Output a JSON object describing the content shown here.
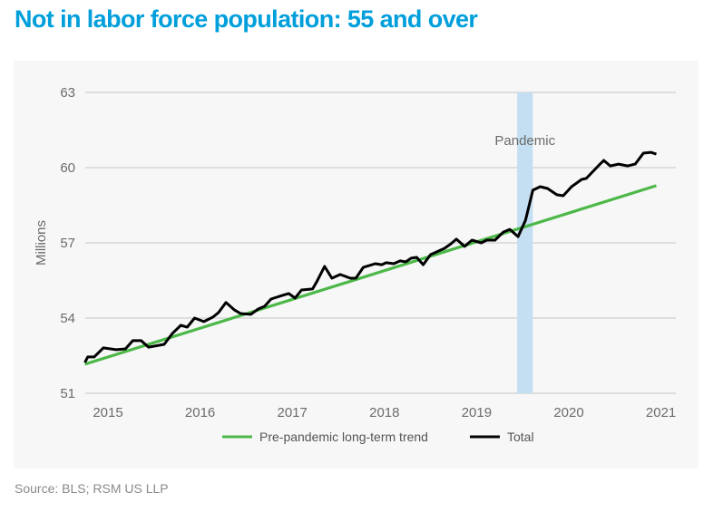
{
  "title": "Not in labor force population: 55 and over",
  "source": "Source: BLS; RSM US LLP",
  "chart_data": {
    "type": "line",
    "title": "Not in labor force population: 55 and over",
    "xlabel": "",
    "ylabel": "Millions",
    "ylim": [
      51,
      63
    ],
    "xlim": [
      2014.76,
      2021.0
    ],
    "yticks": [
      51,
      54,
      57,
      60,
      63
    ],
    "xticks": [
      2015,
      2016,
      2017,
      2018,
      2019,
      2020,
      2021
    ],
    "grid": true,
    "legend_position": "bottom-center",
    "annotation": {
      "label": "Pandemic",
      "x_start": 2019.45,
      "x_end": 2019.62,
      "color": "#c5dff2"
    },
    "series": [
      {
        "name": "Pre-pandemic long-term trend",
        "color": "#4cb848",
        "points": [
          [
            2014.76,
            52.16
          ],
          [
            2020.96,
            59.28
          ]
        ]
      },
      {
        "name": "Total",
        "color": "#000000",
        "points": [
          [
            2014.76,
            52.23
          ],
          [
            2014.79,
            52.45
          ],
          [
            2014.86,
            52.45
          ],
          [
            2014.96,
            52.81
          ],
          [
            2015.1,
            52.74
          ],
          [
            2015.2,
            52.77
          ],
          [
            2015.28,
            53.1
          ],
          [
            2015.37,
            53.1
          ],
          [
            2015.45,
            52.84
          ],
          [
            2015.62,
            52.95
          ],
          [
            2015.71,
            53.39
          ],
          [
            2015.8,
            53.71
          ],
          [
            2015.87,
            53.64
          ],
          [
            2015.95,
            54.0
          ],
          [
            2016.05,
            53.86
          ],
          [
            2016.15,
            54.04
          ],
          [
            2016.21,
            54.22
          ],
          [
            2016.29,
            54.62
          ],
          [
            2016.38,
            54.33
          ],
          [
            2016.45,
            54.18
          ],
          [
            2016.56,
            54.15
          ],
          [
            2016.64,
            54.36
          ],
          [
            2016.71,
            54.47
          ],
          [
            2016.78,
            54.76
          ],
          [
            2016.9,
            54.9
          ],
          [
            2016.97,
            54.98
          ],
          [
            2017.04,
            54.8
          ],
          [
            2017.11,
            55.12
          ],
          [
            2017.23,
            55.16
          ],
          [
            2017.28,
            55.48
          ],
          [
            2017.36,
            56.06
          ],
          [
            2017.44,
            55.59
          ],
          [
            2017.53,
            55.74
          ],
          [
            2017.64,
            55.59
          ],
          [
            2017.7,
            55.59
          ],
          [
            2017.78,
            56.02
          ],
          [
            2017.91,
            56.17
          ],
          [
            2017.98,
            56.13
          ],
          [
            2018.03,
            56.21
          ],
          [
            2018.11,
            56.17
          ],
          [
            2018.18,
            56.28
          ],
          [
            2018.24,
            56.24
          ],
          [
            2018.3,
            56.39
          ],
          [
            2018.36,
            56.42
          ],
          [
            2018.43,
            56.13
          ],
          [
            2018.51,
            56.53
          ],
          [
            2018.66,
            56.78
          ],
          [
            2018.73,
            56.96
          ],
          [
            2018.79,
            57.15
          ],
          [
            2018.88,
            56.86
          ],
          [
            2018.96,
            57.11
          ],
          [
            2019.06,
            57.0
          ],
          [
            2019.12,
            57.11
          ],
          [
            2019.21,
            57.11
          ],
          [
            2019.3,
            57.43
          ],
          [
            2019.37,
            57.54
          ],
          [
            2019.46,
            57.25
          ],
          [
            2019.54,
            57.9
          ],
          [
            2019.62,
            59.1
          ],
          [
            2019.7,
            59.24
          ],
          [
            2019.78,
            59.17
          ],
          [
            2019.88,
            58.92
          ],
          [
            2019.95,
            58.88
          ],
          [
            2020.04,
            59.24
          ],
          [
            2020.15,
            59.53
          ],
          [
            2020.2,
            59.57
          ],
          [
            2020.33,
            60.07
          ],
          [
            2020.39,
            60.29
          ],
          [
            2020.46,
            60.07
          ],
          [
            2020.55,
            60.14
          ],
          [
            2020.65,
            60.07
          ],
          [
            2020.73,
            60.14
          ],
          [
            2020.82,
            60.58
          ],
          [
            2020.9,
            60.61
          ],
          [
            2020.96,
            60.54
          ]
        ]
      }
    ]
  }
}
